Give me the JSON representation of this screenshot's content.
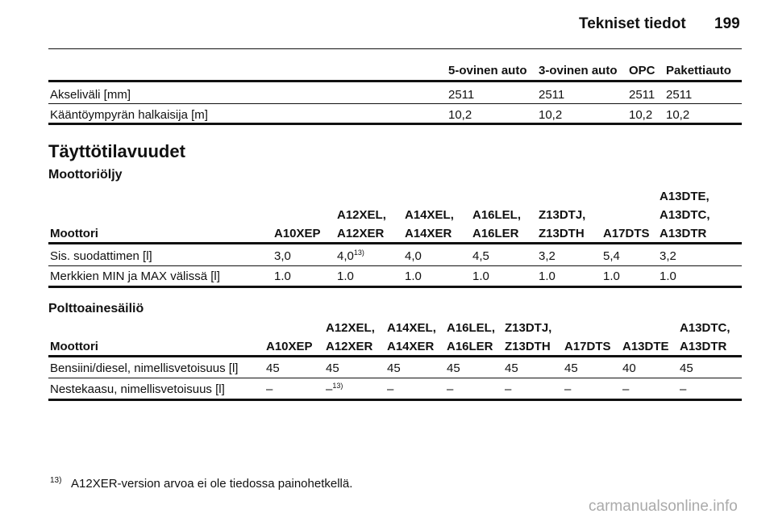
{
  "header": {
    "title": "Tekniset tiedot",
    "page": "199"
  },
  "dimensions": {
    "columns": [
      "5-ovinen auto",
      "3-ovinen auto",
      "OPC",
      "Pakettiauto"
    ],
    "rows": [
      {
        "label": "Akseliväli [mm]",
        "values": [
          "2511",
          "2511",
          "2511",
          "2511"
        ]
      },
      {
        "label": "Kääntöympyrän halkaisija [m]",
        "values": [
          "10,2",
          "10,2",
          "10,2",
          "10,2"
        ]
      }
    ]
  },
  "section_title": "Täyttötilavuudet",
  "oil": {
    "title": "Moottoriöljy",
    "header_label": "Moottori",
    "columns": [
      [
        "A10XEP"
      ],
      [
        "A12XEL,",
        "A12XER"
      ],
      [
        "A14XEL,",
        "A14XER"
      ],
      [
        "A16LEL,",
        "A16LER"
      ],
      [
        "Z13DTJ,",
        "Z13DTH"
      ],
      [
        "A17DTS"
      ],
      [
        "A13DTE,",
        "A13DTC,",
        "A13DTR"
      ]
    ],
    "rows": [
      {
        "label": "Sis. suodattimen [l]",
        "values": [
          {
            "text": "3,0"
          },
          {
            "text": "4,0",
            "note": "13)"
          },
          {
            "text": "4,0"
          },
          {
            "text": "4,5"
          },
          {
            "text": "3,2"
          },
          {
            "text": "5,4"
          },
          {
            "text": "3,2"
          }
        ]
      },
      {
        "label": "Merkkien MIN ja MAX välissä [l]",
        "values": [
          {
            "text": "1.0"
          },
          {
            "text": "1.0"
          },
          {
            "text": "1.0"
          },
          {
            "text": "1.0"
          },
          {
            "text": "1.0"
          },
          {
            "text": "1.0"
          },
          {
            "text": "1.0"
          }
        ]
      }
    ]
  },
  "fuel": {
    "title": "Polttoainesäiliö",
    "header_label": "Moottori",
    "columns": [
      [
        "A10XEP"
      ],
      [
        "A12XEL,",
        "A12XER"
      ],
      [
        "A14XEL,",
        "A14XER"
      ],
      [
        "A16LEL,",
        "A16LER"
      ],
      [
        "Z13DTJ,",
        "Z13DTH"
      ],
      [
        "A17DTS"
      ],
      [
        "A13DTE"
      ],
      [
        "A13DTC,",
        "A13DTR"
      ]
    ],
    "rows": [
      {
        "label": "Bensiini/diesel, nimellisvetoisuus [l]",
        "values": [
          {
            "text": "45"
          },
          {
            "text": "45"
          },
          {
            "text": "45"
          },
          {
            "text": "45"
          },
          {
            "text": "45"
          },
          {
            "text": "45"
          },
          {
            "text": "40"
          },
          {
            "text": "45"
          }
        ]
      },
      {
        "label": "Nestekaasu, nimellisvetoisuus [l]",
        "values": [
          {
            "text": "–"
          },
          {
            "text": "–",
            "note": "13)"
          },
          {
            "text": "–"
          },
          {
            "text": "–"
          },
          {
            "text": "–"
          },
          {
            "text": "–"
          },
          {
            "text": "–"
          },
          {
            "text": "–"
          }
        ]
      }
    ]
  },
  "footnote": {
    "mark": "13)",
    "text": "A12XER-version arvoa ei ole tiedossa painohetkellä."
  },
  "watermark": "carmanualsonline.info"
}
